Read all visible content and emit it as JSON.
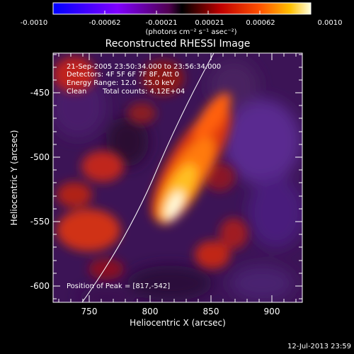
{
  "chart_data": {
    "type": "heatmap",
    "title": "Reconstructed RHESSI Image",
    "xlabel": "Heliocentric X (arcsec)",
    "ylabel": "Heliocentric Y (arcsec)",
    "xlim": [
      722,
      912
    ],
    "ylim": [
      -610,
      -417
    ],
    "x_ticks": [
      750,
      800,
      850,
      900
    ],
    "y_ticks": [
      -450,
      -500,
      -550,
      -600
    ],
    "colorbar": {
      "range": [
        -0.001,
        0.001
      ],
      "tick_labels": [
        "-0.0010",
        "-0.00062",
        "-0.00021",
        "0.00021",
        "0.00062",
        "0.0010"
      ],
      "unit_label": "(photons cm⁻² s⁻¹ asec⁻²)"
    },
    "annotations": {
      "time_range": "21-Sep-2005 23:50:34.000 to 23:56:34.000",
      "detectors": "Detectors: 4F 5F 6F 7F 8F, Att 0",
      "energy_range": "Energy Range: 12.0 - 25.0 keV",
      "clean": "Clean",
      "total_counts": "Total counts: 4.12E+04",
      "peak_position": "Position of Peak = [817,-542]"
    },
    "peak": {
      "x": 817,
      "y": -542
    },
    "footer_timestamp": "12-Jul-2013 23:59"
  }
}
